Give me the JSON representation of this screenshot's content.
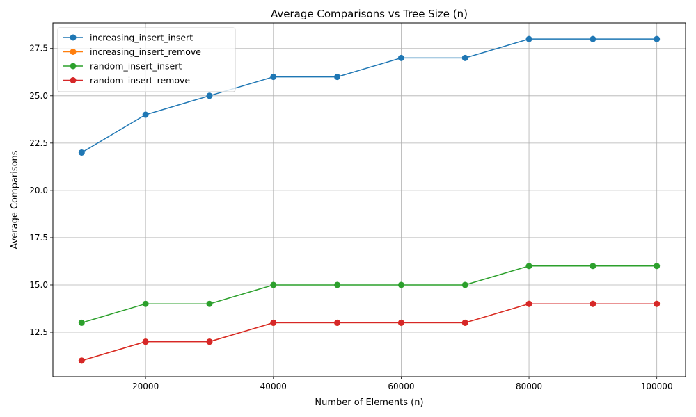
{
  "chart_data": {
    "type": "line",
    "title": "Average Comparisons vs Tree Size (n)",
    "xlabel": "Number of Elements (n)",
    "ylabel": "Average Comparisons",
    "x": [
      10000,
      20000,
      30000,
      40000,
      50000,
      60000,
      70000,
      80000,
      90000,
      100000
    ],
    "xlim": [
      5500,
      104500
    ],
    "ylim": [
      10.15,
      28.85
    ],
    "xticks": [
      20000,
      40000,
      60000,
      80000,
      100000
    ],
    "yticks": [
      12.5,
      15.0,
      17.5,
      20.0,
      22.5,
      25.0,
      27.5
    ],
    "grid": true,
    "legend_position": "top-left",
    "series": [
      {
        "name": "increasing_insert_insert",
        "color": "#1f77b4",
        "values": [
          22,
          24,
          25,
          26,
          26,
          27,
          27,
          28,
          28,
          28
        ]
      },
      {
        "name": "increasing_insert_remove",
        "color": "#ff7f0e",
        "values": [
          11,
          12,
          12,
          13,
          13,
          13,
          13,
          14,
          14,
          14
        ]
      },
      {
        "name": "random_insert_insert",
        "color": "#2ca02c",
        "values": [
          13,
          14,
          14,
          15,
          15,
          15,
          15,
          16,
          16,
          16
        ]
      },
      {
        "name": "random_insert_remove",
        "color": "#d62728",
        "values": [
          11,
          12,
          12,
          13,
          13,
          13,
          13,
          14,
          14,
          14
        ]
      }
    ]
  }
}
